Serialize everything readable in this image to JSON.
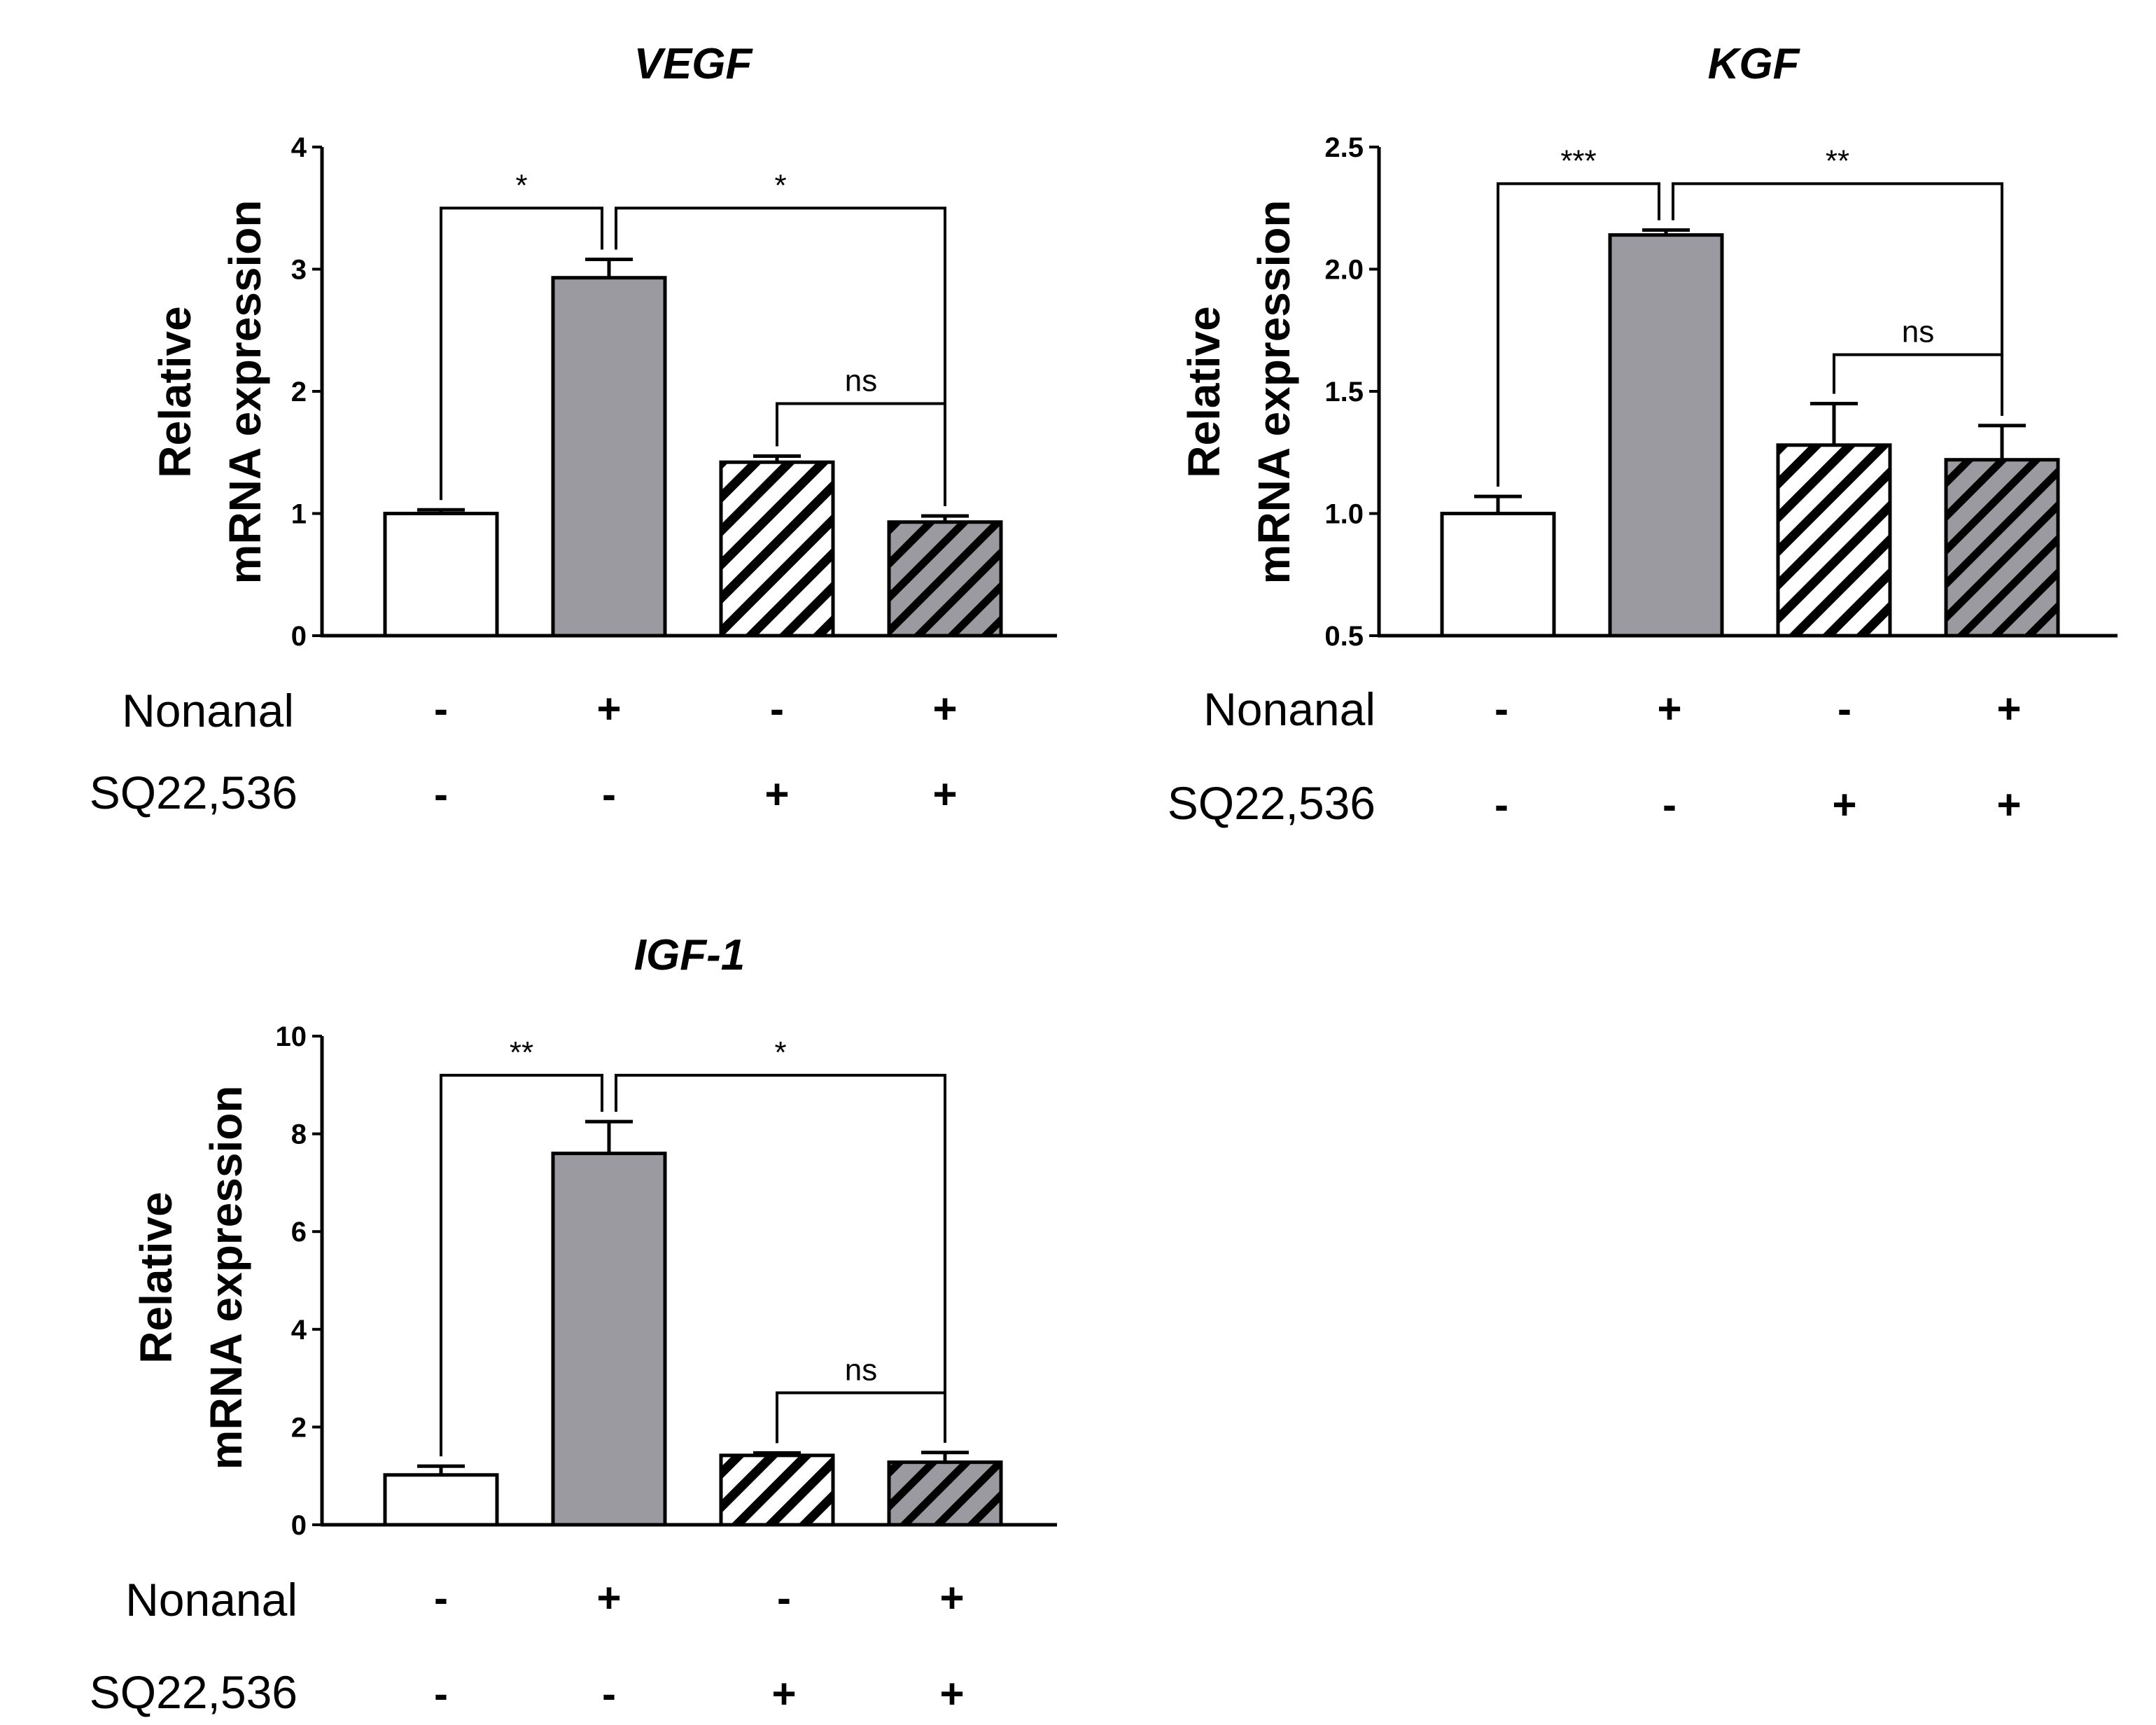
{
  "chart_data": [
    {
      "type": "bar",
      "title": "VEGF",
      "ylabel_line1": "Relative",
      "ylabel_line2": "mRNA expression",
      "ylim": [
        0,
        4
      ],
      "yticks": [
        "0",
        "1",
        "2",
        "3",
        "4"
      ],
      "values": [
        1.0,
        2.93,
        1.42,
        0.93
      ],
      "errors": [
        0.03,
        0.15,
        0.05,
        0.05
      ],
      "fills": [
        "white",
        "gray",
        "hatch-white",
        "hatch-gray"
      ],
      "condition_labels": [
        "Nonanal",
        "SQ22,536"
      ],
      "nonanal_signs": [
        "-",
        "+",
        "-",
        "+"
      ],
      "sq_signs": [
        "-",
        "-",
        "+",
        "+"
      ],
      "brackets": [
        {
          "from": 0,
          "to": 1,
          "label": "*",
          "level": 3.5
        },
        {
          "from": 1,
          "to": 3,
          "label": "*",
          "level": 3.5
        },
        {
          "from": 2,
          "to": 3,
          "label": "ns",
          "level": 1.9
        }
      ]
    },
    {
      "type": "bar",
      "title": "KGF",
      "ylabel_line1": "Relative",
      "ylabel_line2": "mRNA expression",
      "ylim": [
        0.5,
        2.5
      ],
      "yticks": [
        "0.5",
        "1.0",
        "1.5",
        "2.0",
        "2.5"
      ],
      "values": [
        1.0,
        2.14,
        1.28,
        1.22
      ],
      "errors": [
        0.07,
        0.02,
        0.17,
        0.14
      ],
      "fills": [
        "white",
        "gray",
        "hatch-white",
        "hatch-gray"
      ],
      "condition_labels": [
        "Nonanal",
        "SQ22,536"
      ],
      "nonanal_signs": [
        "-",
        "+",
        "-",
        "+"
      ],
      "sq_signs": [
        "-",
        "-",
        "+",
        "+"
      ],
      "brackets": [
        {
          "from": 0,
          "to": 1,
          "label": "***",
          "level": 2.35
        },
        {
          "from": 1,
          "to": 3,
          "label": "**",
          "level": 2.35
        },
        {
          "from": 2,
          "to": 3,
          "label": "ns",
          "level": 1.65
        }
      ]
    },
    {
      "type": "bar",
      "title": "IGF-1",
      "ylabel_line1": "Relative",
      "ylabel_line2": "mRNA expression",
      "ylim": [
        0,
        10
      ],
      "yticks": [
        "0",
        "2",
        "4",
        "6",
        "8",
        "10"
      ],
      "values": [
        1.02,
        7.6,
        1.42,
        1.28
      ],
      "errors": [
        0.18,
        0.65,
        0.05,
        0.2
      ],
      "fills": [
        "white",
        "gray",
        "hatch-white",
        "hatch-gray"
      ],
      "condition_labels": [
        "Nonanal",
        "SQ22,536"
      ],
      "nonanal_signs": [
        "-",
        "+",
        "-",
        "+"
      ],
      "sq_signs": [
        "-",
        "-",
        "+",
        "+"
      ],
      "brackets": [
        {
          "from": 0,
          "to": 1,
          "label": "**",
          "level": 9.2
        },
        {
          "from": 1,
          "to": 3,
          "label": "*",
          "level": 9.2
        },
        {
          "from": 2,
          "to": 3,
          "label": "ns",
          "level": 2.7
        }
      ]
    }
  ]
}
